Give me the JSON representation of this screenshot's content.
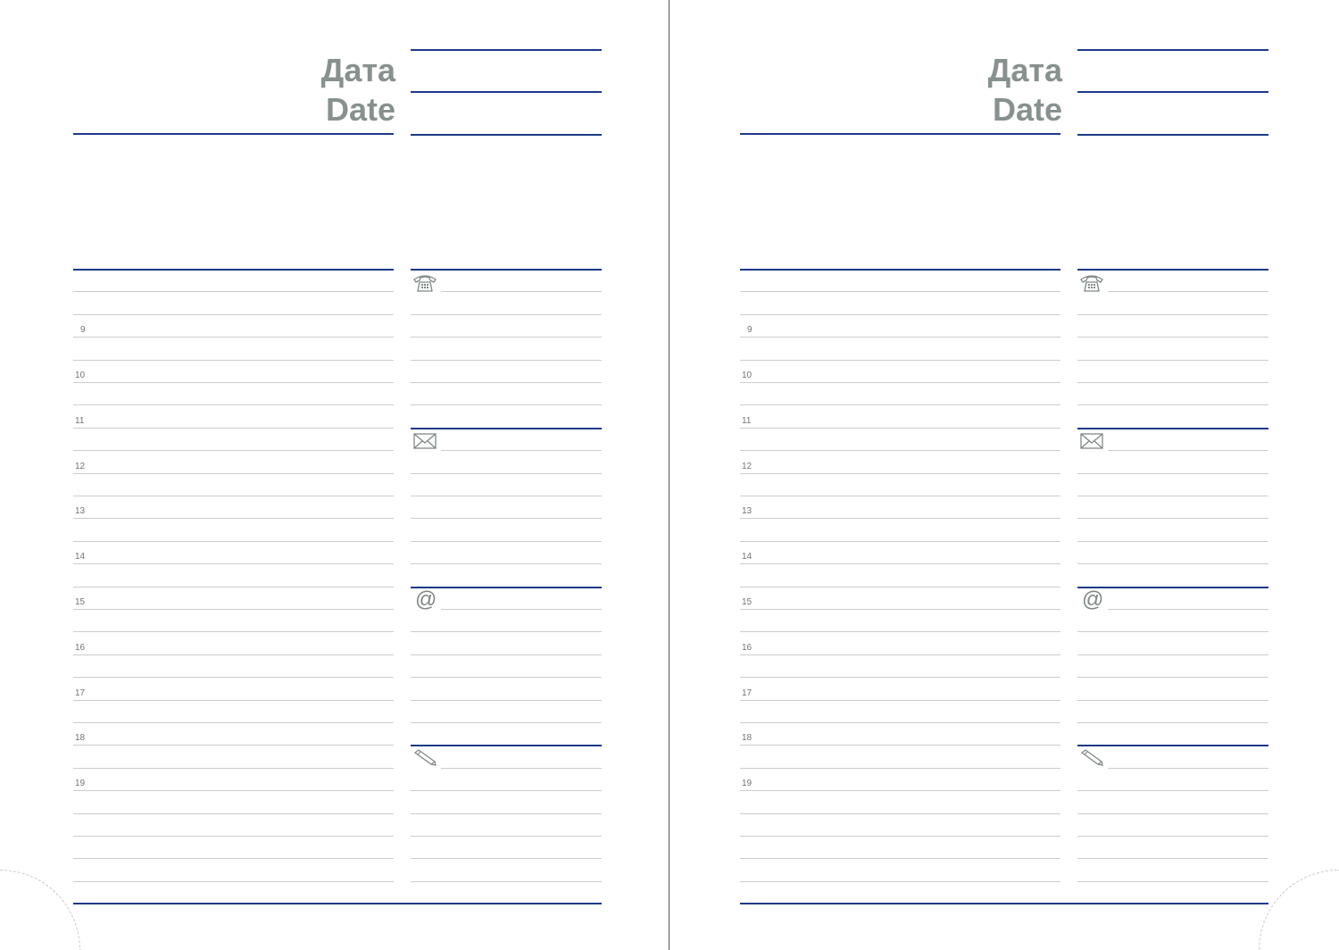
{
  "pages": [
    {
      "title_ru": "Дата",
      "title_en": "Date"
    },
    {
      "title_ru": "Дата",
      "title_en": "Date"
    }
  ],
  "hours": [
    "9",
    "10",
    "11",
    "12",
    "13",
    "14",
    "15",
    "16",
    "17",
    "18",
    "19"
  ],
  "sections": [
    {
      "icon": "telephone-icon"
    },
    {
      "icon": "envelope-icon"
    },
    {
      "icon": "at-sign-icon",
      "glyph": "@"
    },
    {
      "icon": "pencil-icon"
    }
  ],
  "colors": {
    "rule_blue": "#1c3a86",
    "rule_gray": "#c9cdcf",
    "title_gray": "#87918f"
  }
}
